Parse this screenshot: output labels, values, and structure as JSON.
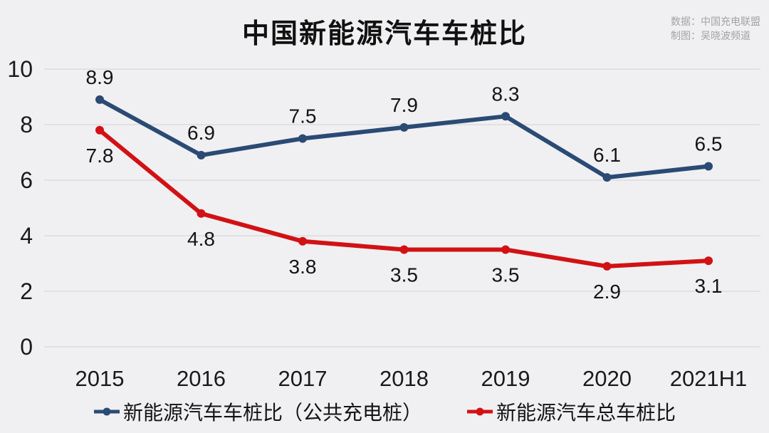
{
  "title": "中国新能源汽车车桩比",
  "source": {
    "line1": "数据：中国充电联盟",
    "line2": "制图：吴晓波频道"
  },
  "colors": {
    "blue": "#2b4a74",
    "red": "#d11215",
    "background": "#f0f0f2",
    "gridline": "#dcdcdf",
    "axis_text": "#1a1a1a",
    "value_text": "#141414",
    "source_text": "#a3a3a3"
  },
  "chart_data": {
    "type": "line",
    "categories": [
      "2015",
      "2016",
      "2017",
      "2018",
      "2019",
      "2020",
      "2021H1"
    ],
    "series": [
      {
        "name": "新能源汽车车桩比（公共充电桩）",
        "color_key": "blue",
        "values": [
          8.9,
          6.9,
          7.5,
          7.9,
          8.3,
          6.1,
          6.5
        ],
        "label_position": "above"
      },
      {
        "name": "新能源汽车总车桩比",
        "color_key": "red",
        "values": [
          7.8,
          4.8,
          3.8,
          3.5,
          3.5,
          2.9,
          3.1
        ],
        "label_position": "below"
      }
    ],
    "y_ticks": [
      0,
      2,
      4,
      6,
      8,
      10
    ],
    "ylim": [
      0,
      10
    ],
    "grid": true,
    "legend_position": "bottom",
    "xlabel": "",
    "ylabel": ""
  }
}
